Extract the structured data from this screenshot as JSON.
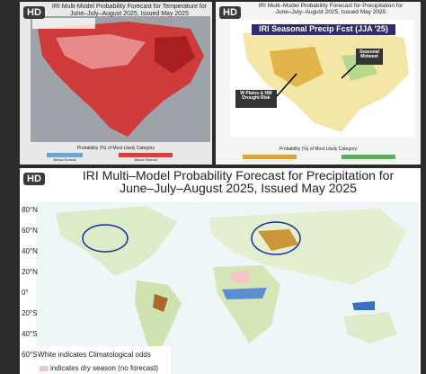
{
  "panels": [
    {
      "badge": "HD",
      "title_line1": "IRI Multi-Model Probability Forecast for Temperature for",
      "title_line2": "June–July–August 2025, Issued May 2025",
      "colorbar_label": "Probability (%) of Most Likely Category",
      "below": "Below Normal",
      "above": "Above Normal"
    },
    {
      "badge": "HD",
      "title_line1": "IRI Multi–Model Probability Forecast for Precipitation for",
      "title_line2": "June–July–August 2025, Issued May 2025",
      "banner": "IRI Seasonal Precip Fcst (JJA '25)",
      "callout_midwest": "Seasonal Midwest",
      "callout_plains": "W Plains & NW Drought Risk",
      "colorbar_label": "Probability (%) of Most Likely Category"
    },
    {
      "badge": "HD",
      "title_line1": "IRI Multi–Model Probability Forecast for Precipitation for",
      "title_line2": "June–July–August 2025, Issued May 2025",
      "latitudes": [
        "80°N",
        "60°N",
        "40°N",
        "20°N",
        "0°",
        "20°S",
        "40°S",
        "60°S"
      ],
      "legend_white": "White indicates Climatological odds",
      "legend_dry": "indicates dry season (no forecast)"
    }
  ]
}
